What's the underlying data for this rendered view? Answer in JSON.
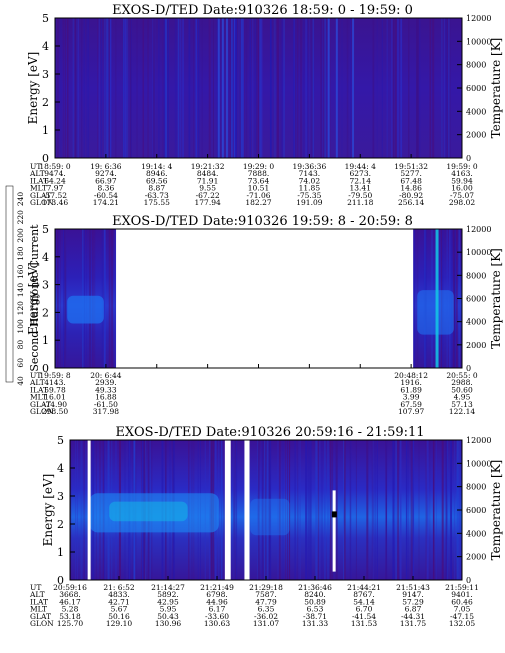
{
  "colorbar": {
    "label": "Second Harmonic Current",
    "ticks": [
      "40",
      "60",
      "80",
      "100",
      "120",
      "140",
      "160",
      "180",
      "200",
      "220",
      "240"
    ],
    "colors": [
      "#000000",
      "#2a0030",
      "#4b0a78",
      "#2a1fb0",
      "#1f46e0",
      "#1f7af0",
      "#14b4e6",
      "#14d2b4",
      "#00e650",
      "#a0f000",
      "#f0f000",
      "#ff8c00",
      "#ff0000"
    ]
  },
  "chart_data": [
    {
      "type": "heatmap",
      "title": "EXOS-D/TED   Date:910326  18:59: 0 - 19:59: 0",
      "ylabel": "Energy [eV]",
      "y2label": "Temperature [K]",
      "ylim": [
        0,
        5
      ],
      "y2lim": [
        0,
        12000
      ],
      "yticks": [
        "0",
        "1",
        "2",
        "3",
        "4",
        "5"
      ],
      "y2ticks": [
        "0",
        "2000",
        "4000",
        "6000",
        "8000",
        "10000",
        "12000"
      ],
      "row_labels": [
        "UT",
        "ALT",
        "ILAT",
        "MLT",
        "GLAT",
        "GLON"
      ],
      "columns": [
        [
          "18:59: 0",
          "9474.",
          "64.24",
          "7.97",
          "-57.52",
          "173.46"
        ],
        [
          "19: 6:36",
          "9274.",
          "66.97",
          "8.36",
          "-60.54",
          "174.21"
        ],
        [
          "19:14: 4",
          "8946.",
          "69.56",
          "8.87",
          "-63.73",
          "175.55"
        ],
        [
          "19:21:32",
          "8484.",
          "71.91",
          "9.55",
          "-67.22",
          "177.94"
        ],
        [
          "19:29: 0",
          "7888.",
          "73.64",
          "10.51",
          "-71.06",
          "182.27"
        ],
        [
          "19:36:36",
          "7143.",
          "74.02",
          "11.85",
          "-75.35",
          "191.09"
        ],
        [
          "19:44: 4",
          "6273.",
          "72.14",
          "13.41",
          "-79.50",
          "211.18"
        ],
        [
          "19:51:32",
          "5277.",
          "67.48",
          "14.86",
          "-80.92",
          "256.14"
        ],
        [
          "19:59: 0",
          "4163.",
          "59.94",
          "16.00",
          "-75.07",
          "298.02"
        ]
      ],
      "gaps": []
    },
    {
      "type": "heatmap",
      "title": "EXOS-D/TED   Date:910326  19:59: 8 - 20:59: 8",
      "ylabel": "Energy [eV]",
      "y2label": "Temperature [K]",
      "ylim": [
        0,
        5
      ],
      "y2lim": [
        0,
        12000
      ],
      "yticks": [
        "0",
        "1",
        "2",
        "3",
        "4",
        "5"
      ],
      "y2ticks": [
        "0",
        "2000",
        "4000",
        "6000",
        "8000",
        "10000",
        "12000"
      ],
      "row_labels": [
        "UT",
        "ALT",
        "ILAT",
        "MLT",
        "GLAT",
        "GLON"
      ],
      "columns": [
        [
          "19:59: 8",
          "4143.",
          "59.78",
          "16.01",
          "-74.90",
          "298.50"
        ],
        [
          "20: 6:44",
          "2939.",
          "49.33",
          "16.88",
          "-61.50",
          "317.98"
        ],
        [
          "",
          "",
          "",
          "",
          "",
          ""
        ],
        [
          "",
          "",
          "",
          "",
          "",
          ""
        ],
        [
          "",
          "",
          "",
          "",
          "",
          ""
        ],
        [
          "",
          "",
          "",
          "",
          "",
          ""
        ],
        [
          "",
          "",
          "",
          "",
          "",
          ""
        ],
        [
          "20:48:12",
          "1916.",
          "61.89",
          "3.99",
          "67.59",
          "107.97"
        ],
        [
          "20:55: 0",
          "2988.",
          "50.60",
          "4.95",
          "57.13",
          "122.14"
        ]
      ],
      "gaps": [
        [
          0.15,
          0.88
        ]
      ]
    },
    {
      "type": "heatmap",
      "title": "EXOS-D/TED   Date:910326  20:59:16 - 21:59:11",
      "ylabel": "Energy [eV]",
      "y2label": "Temperature [K]",
      "ylim": [
        0,
        5
      ],
      "y2lim": [
        0,
        12000
      ],
      "yticks": [
        "0",
        "1",
        "2",
        "3",
        "4",
        "5"
      ],
      "y2ticks": [
        "0",
        "2000",
        "4000",
        "6000",
        "8000",
        "10000",
        "12000"
      ],
      "row_labels": [
        "UT",
        "ALT",
        "ILAT",
        "MLT",
        "GLAT",
        "GLON"
      ],
      "columns": [
        [
          "20:59:16",
          "3668.",
          "46.17",
          "5.28",
          "53.18",
          "125.70"
        ],
        [
          "21: 6:52",
          "4833.",
          "42.71",
          "5.67",
          "50.16",
          "129.10"
        ],
        [
          "21:14:27",
          "5892.",
          "42.95",
          "5.95",
          "50.43",
          "130.96"
        ],
        [
          "21:21:49",
          "6798.",
          "44.96",
          "6.17",
          "-33.60",
          "130.63"
        ],
        [
          "21:29:18",
          "7587.",
          "47.79",
          "6.35",
          "-36.02",
          "131.07"
        ],
        [
          "21:36:46",
          "8240.",
          "50.89",
          "6.53",
          "-38.71",
          "131.33"
        ],
        [
          "21:44:21",
          "8767.",
          "54.14",
          "6.70",
          "-41.54",
          "131.53"
        ],
        [
          "21:51:43",
          "9147.",
          "57.29",
          "6.87",
          "-44.31",
          "131.75"
        ],
        [
          "21:59:11",
          "9401.",
          "60.46",
          "7.05",
          "-47.15",
          "132.05"
        ]
      ],
      "gaps": [
        [
          0.395,
          0.41
        ],
        [
          0.445,
          0.458
        ]
      ]
    }
  ]
}
